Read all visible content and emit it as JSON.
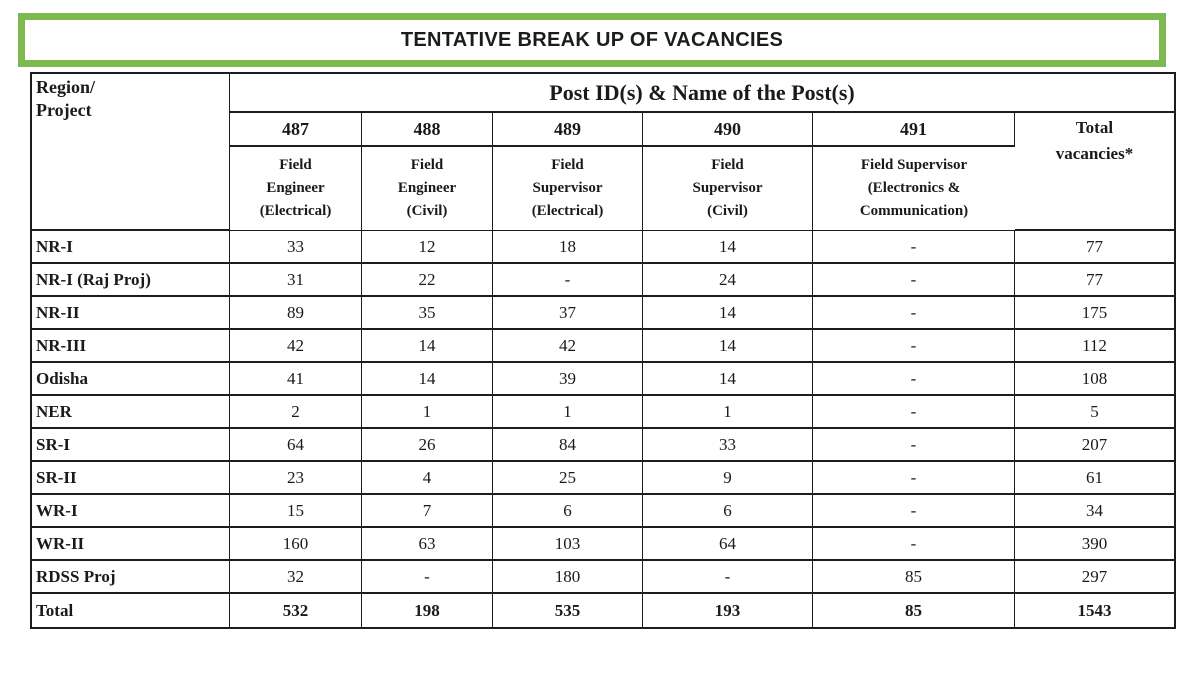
{
  "title": "TENTATIVE BREAK UP OF VACANCIES",
  "colors": {
    "accent_green": "#7cb94e",
    "border_dark": "#1c1c1c",
    "text": "#1a1a1a",
    "background": "#ffffff"
  },
  "table": {
    "corner_lines": [
      "Region/",
      "Project"
    ],
    "group_header": "Post ID(s) & Name of the Post(s)",
    "post_ids": [
      "487",
      "488",
      "489",
      "490",
      "491"
    ],
    "post_name_lines": [
      [
        "Field",
        "Engineer",
        "(Electrical)"
      ],
      [
        "Field",
        "Engineer",
        "(Civil)"
      ],
      [
        "Field",
        "Supervisor",
        "(Electrical)"
      ],
      [
        "Field",
        "Supervisor",
        "(Civil)"
      ],
      [
        "Field Supervisor",
        "(Electronics &",
        "Communication)"
      ]
    ],
    "total_header_lines": [
      "Total",
      "vacancies*"
    ],
    "rows": [
      {
        "region": "NR-I",
        "values": [
          "33",
          "12",
          "18",
          "14",
          "-",
          "77"
        ]
      },
      {
        "region": "NR-I (Raj Proj)",
        "values": [
          "31",
          "22",
          "-",
          "24",
          "-",
          "77"
        ]
      },
      {
        "region": "NR-II",
        "values": [
          "89",
          "35",
          "37",
          "14",
          "-",
          "175"
        ]
      },
      {
        "region": "NR-III",
        "values": [
          "42",
          "14",
          "42",
          "14",
          "-",
          "112"
        ]
      },
      {
        "region": "Odisha",
        "values": [
          "41",
          "14",
          "39",
          "14",
          "-",
          "108"
        ]
      },
      {
        "region": "NER",
        "values": [
          "2",
          "1",
          "1",
          "1",
          "-",
          "5"
        ]
      },
      {
        "region": "SR-I",
        "values": [
          "64",
          "26",
          "84",
          "33",
          "-",
          "207"
        ]
      },
      {
        "region": "SR-II",
        "values": [
          "23",
          "4",
          "25",
          "9",
          "-",
          "61"
        ]
      },
      {
        "region": "WR-I",
        "values": [
          "15",
          "7",
          "6",
          "6",
          "-",
          "34"
        ]
      },
      {
        "region": "WR-II",
        "values": [
          "160",
          "63",
          "103",
          "64",
          "-",
          "390"
        ]
      },
      {
        "region": "RDSS Proj",
        "values": [
          "32",
          "-",
          "180",
          "-",
          "85",
          "297"
        ]
      }
    ],
    "total_row": {
      "region": "Total",
      "values": [
        "532",
        "198",
        "535",
        "193",
        "85",
        "1543"
      ]
    }
  }
}
